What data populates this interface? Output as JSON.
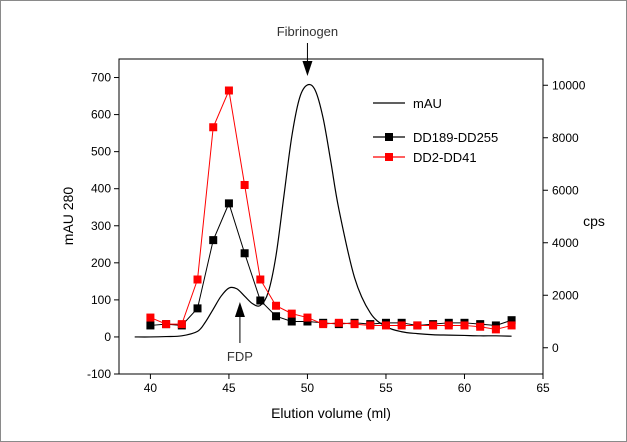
{
  "chart_data": {
    "type": "line",
    "xlabel": "Elution volume (ml)",
    "ylabel": "mAU 280",
    "y2label": "cps",
    "xlim": [
      38,
      65
    ],
    "ylim": [
      -100,
      750
    ],
    "y2lim": [
      -1000,
      11000
    ],
    "xticks": [
      40,
      45,
      50,
      55,
      60,
      65
    ],
    "yticks": [
      -100,
      0,
      100,
      200,
      300,
      400,
      500,
      600,
      700
    ],
    "y2ticks": [
      0,
      2000,
      4000,
      6000,
      8000,
      10000
    ],
    "grid": false,
    "legend_position": "top-right",
    "series": [
      {
        "name": "mAU",
        "axis": "left",
        "color": "#000000",
        "marker": "none",
        "x": [
          39,
          40,
          41,
          42,
          43,
          43.5,
          44,
          44.5,
          45,
          45.5,
          46,
          46.5,
          47,
          47.5,
          48,
          48.5,
          49,
          49.5,
          50,
          50.5,
          51,
          51.5,
          52,
          53,
          54,
          55,
          56,
          57,
          58,
          59,
          60,
          61,
          62,
          63
        ],
        "values": [
          0,
          0,
          1,
          3,
          15,
          40,
          75,
          110,
          132,
          130,
          110,
          90,
          85,
          120,
          220,
          380,
          540,
          645,
          680,
          665,
          590,
          470,
          345,
          160,
          65,
          28,
          14,
          9,
          6,
          5,
          4,
          3,
          3,
          2
        ]
      },
      {
        "name": "DD189-DD255",
        "axis": "right",
        "color": "#000000",
        "marker": "square",
        "x": [
          40,
          41,
          42,
          43,
          44,
          45,
          46,
          47,
          48,
          49,
          50,
          51,
          52,
          53,
          54,
          55,
          56,
          57,
          58,
          59,
          60,
          61,
          62,
          63
        ],
        "values": [
          850,
          900,
          850,
          1500,
          4100,
          5500,
          3600,
          1800,
          1200,
          1000,
          1000,
          950,
          900,
          950,
          900,
          950,
          950,
          850,
          900,
          950,
          950,
          900,
          850,
          1050
        ]
      },
      {
        "name": "DD2-DD41",
        "axis": "right",
        "color": "#ff0000",
        "marker": "square",
        "x": [
          40,
          41,
          42,
          43,
          44,
          45,
          46,
          47,
          48,
          49,
          50,
          51,
          52,
          53,
          54,
          55,
          56,
          57,
          58,
          59,
          60,
          61,
          62,
          63
        ],
        "values": [
          1150,
          900,
          900,
          2600,
          8400,
          9800,
          6200,
          2600,
          1600,
          1300,
          1150,
          900,
          950,
          900,
          850,
          850,
          850,
          850,
          850,
          850,
          850,
          800,
          700,
          850
        ]
      }
    ],
    "annotations": [
      {
        "text": "Fibrinogen",
        "x": 50,
        "y": 680
      },
      {
        "text": "FDP",
        "x": 45.7,
        "y": 132
      }
    ]
  }
}
